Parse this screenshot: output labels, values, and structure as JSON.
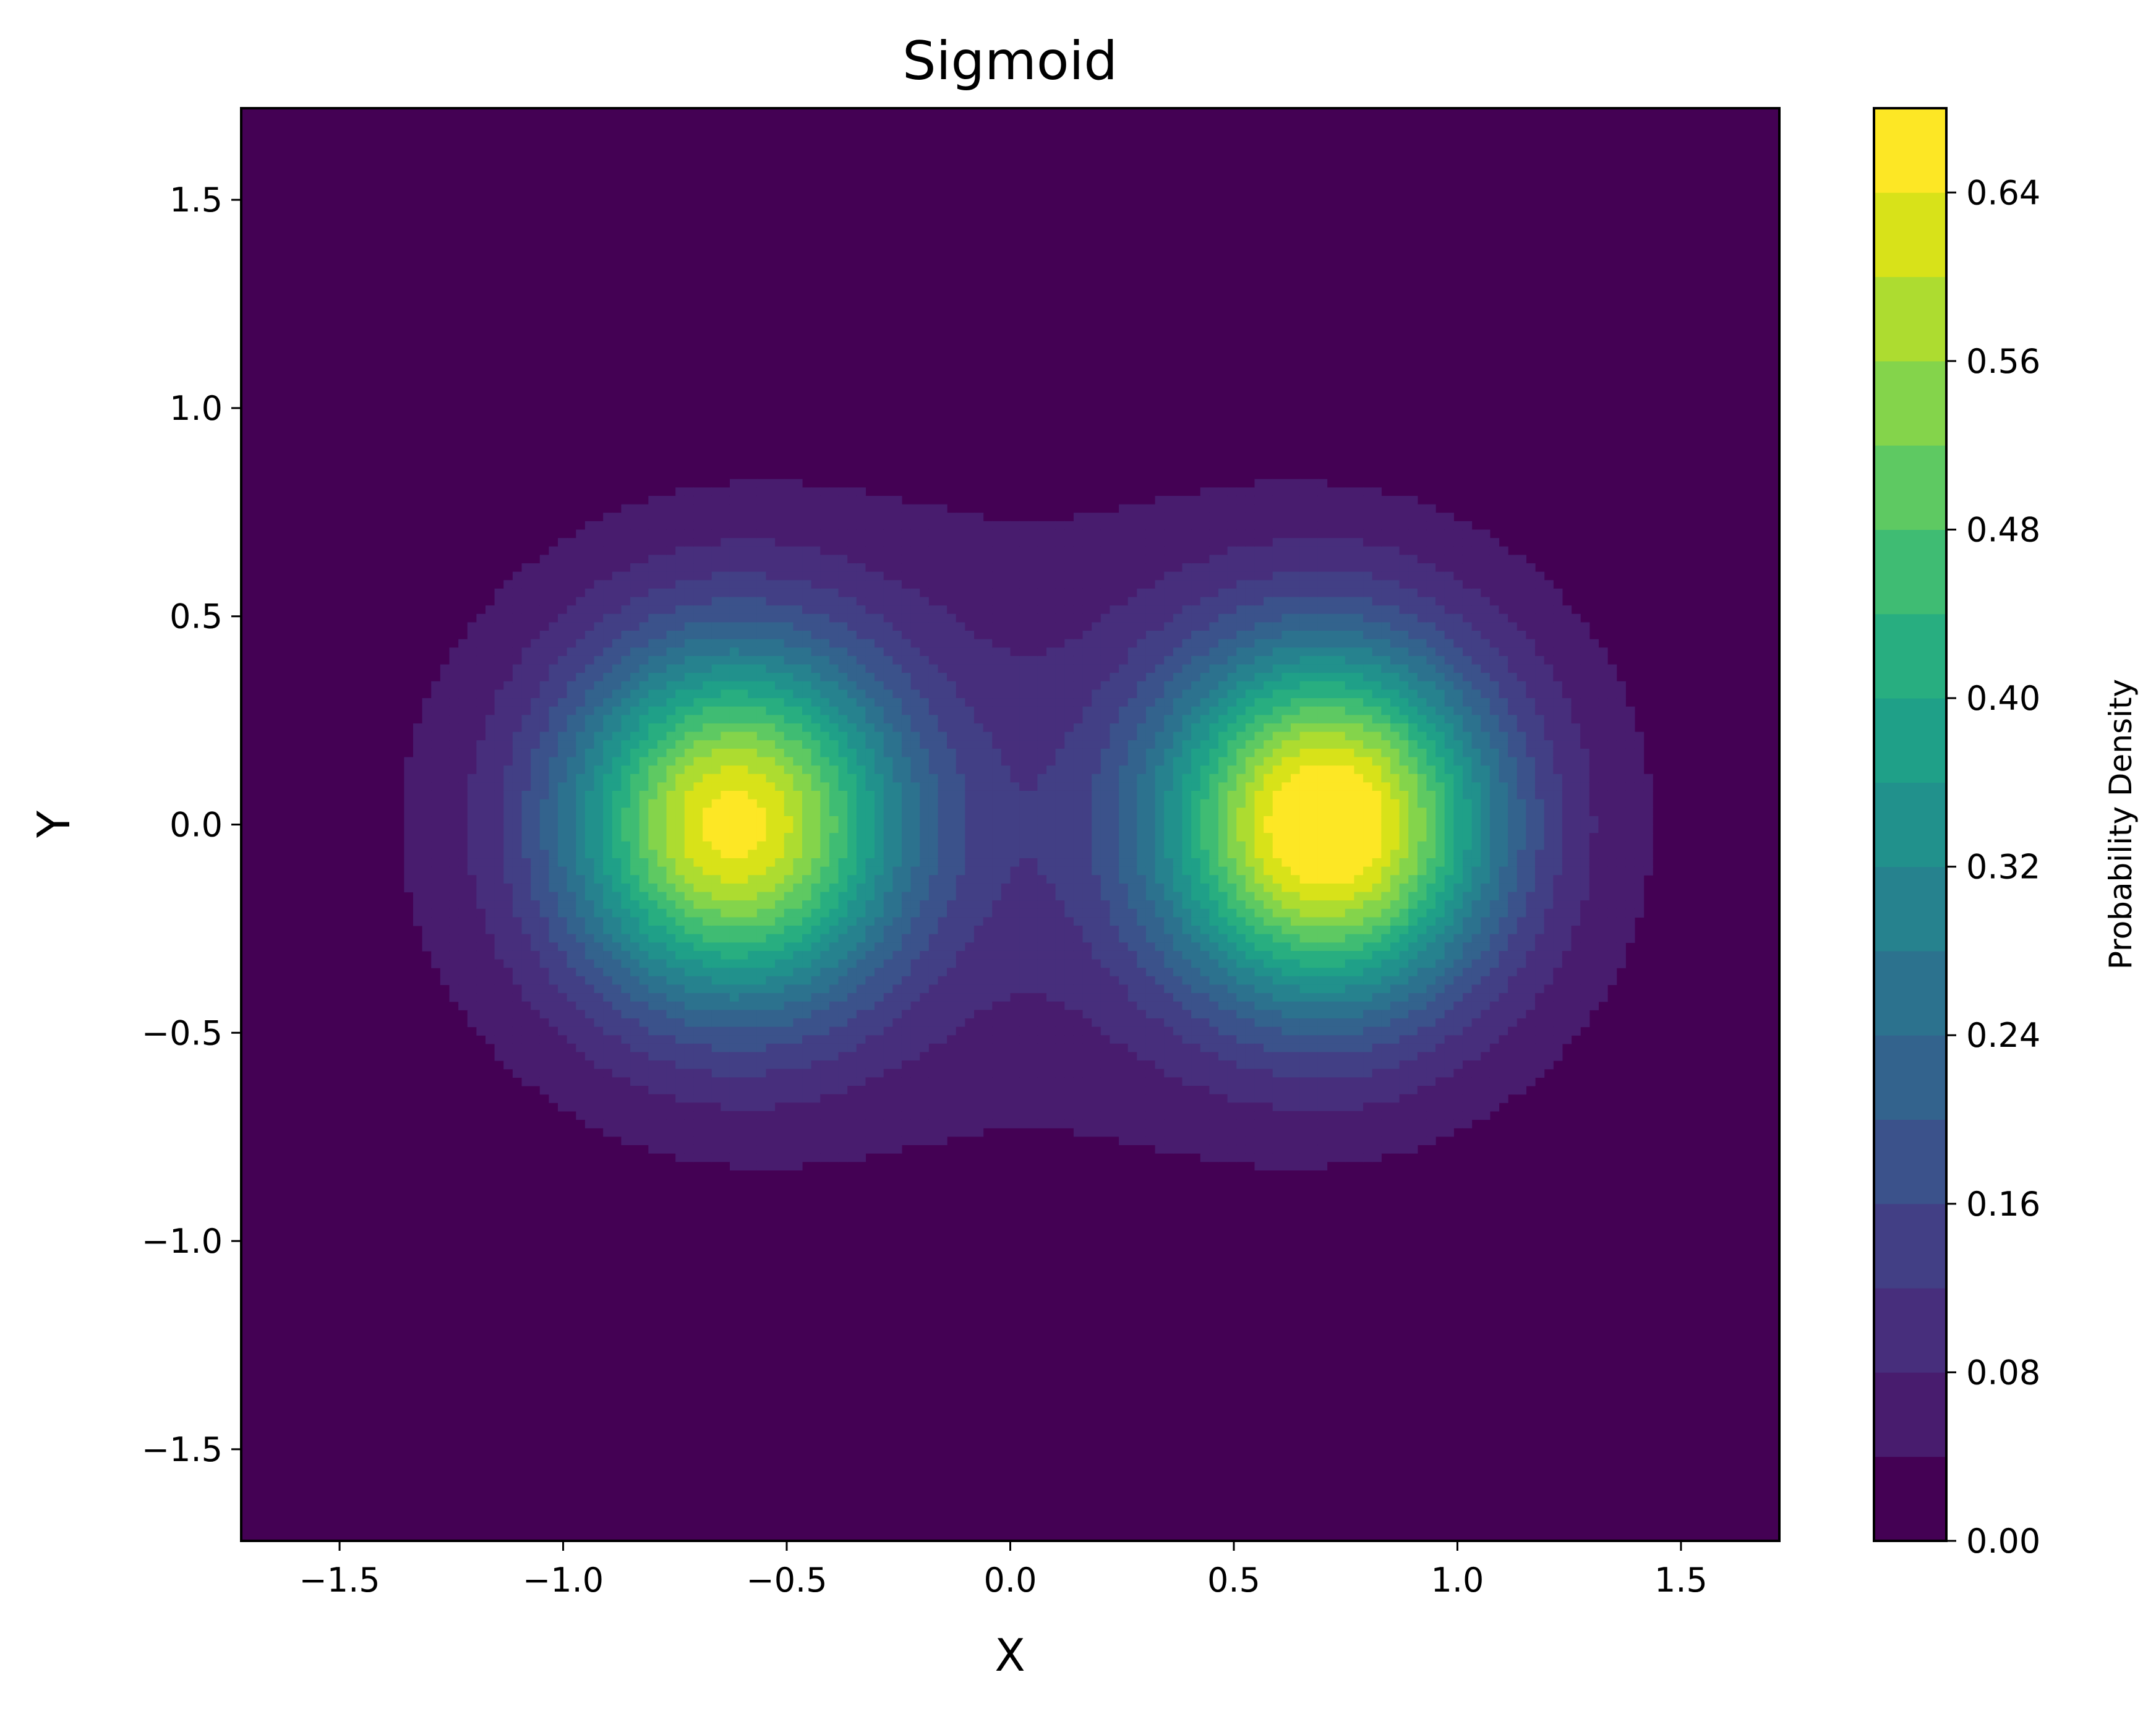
{
  "chart_data": {
    "type": "contourf",
    "title": "Sigmoid",
    "xlabel": "X",
    "ylabel": "Y",
    "xlim": [
      -1.72,
      1.72
    ],
    "ylim": [
      -1.72,
      1.72
    ],
    "x_ticks": [
      -1.5,
      -1.0,
      -0.5,
      0.0,
      0.5,
      1.0,
      1.5
    ],
    "x_tick_labels": [
      "−1.5",
      "−1.0",
      "−0.5",
      "0.0",
      "0.5",
      "1.0",
      "1.5"
    ],
    "y_ticks": [
      1.5,
      1.0,
      0.5,
      0.0,
      -0.5,
      -1.0,
      -1.5
    ],
    "y_tick_labels": [
      "1.5",
      "1.0",
      "0.5",
      "0.0",
      "−0.5",
      "−1.0",
      "−1.5"
    ],
    "grid": false,
    "colormap": "viridis",
    "colorbar": {
      "label": "Probability Density",
      "range": [
        0.0,
        0.68
      ],
      "ticks": [
        0.0,
        0.08,
        0.16,
        0.24,
        0.32,
        0.4,
        0.48,
        0.56,
        0.64
      ],
      "tick_labels": [
        "0.00",
        "0.08",
        "0.16",
        "0.24",
        "0.32",
        "0.40",
        "0.48",
        "0.56",
        "0.64"
      ],
      "levels": [
        0.0,
        0.04,
        0.08,
        0.12,
        0.16,
        0.2,
        0.24,
        0.28,
        0.32,
        0.36,
        0.4,
        0.44,
        0.48,
        0.52,
        0.56,
        0.6,
        0.64,
        0.68
      ],
      "colors": [
        "#440154",
        "#481c6e",
        "#472e7c",
        "#423f85",
        "#3b528b",
        "#33638d",
        "#2c728e",
        "#26828e",
        "#21918c",
        "#1fa088",
        "#28ae80",
        "#3fbc73",
        "#5ec962",
        "#84d44b",
        "#addc30",
        "#d8e219",
        "#fde725"
      ]
    },
    "density_peaks": [
      {
        "x": -0.62,
        "y": 0.0,
        "peak_density": 0.6
      },
      {
        "x": 0.71,
        "y": 0.0,
        "peak_density": 0.66
      }
    ]
  }
}
